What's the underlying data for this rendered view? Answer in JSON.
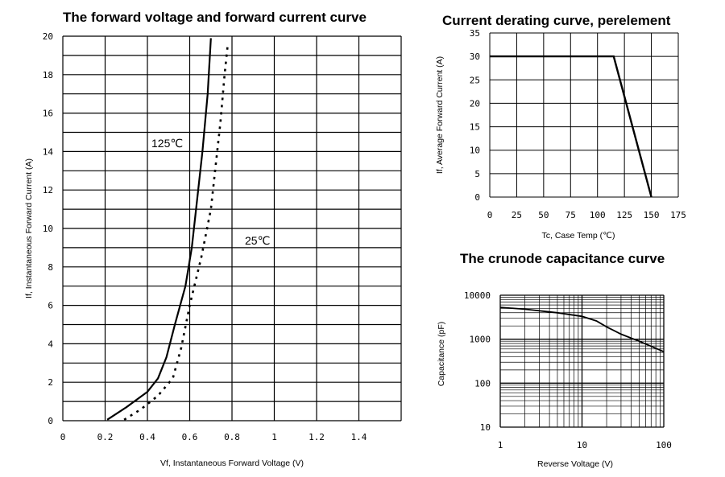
{
  "chart_data": [
    {
      "type": "line",
      "title": "The forward voltage and forward current curve",
      "xlabel": "Vf, Instantaneous Forward Voltage (V)",
      "ylabel": "If, Instantaneous Forward Current (A)",
      "xlim": [
        0,
        1.6
      ],
      "ylim": [
        0,
        20
      ],
      "xticks": [
        "0",
        "0.2",
        "0.4",
        "0.6",
        "0.8",
        "1",
        "1.2",
        "1.4"
      ],
      "yticks": [
        "0",
        "2",
        "4",
        "6",
        "8",
        "10",
        "12",
        "14",
        "16",
        "18",
        "20"
      ],
      "grid": true,
      "annotations": [
        "125℃",
        "25℃"
      ],
      "series": [
        {
          "name": "125℃",
          "style": "solid",
          "x": [
            0.21,
            0.3,
            0.4,
            0.45,
            0.49,
            0.53,
            0.58,
            0.61,
            0.635,
            0.66,
            0.685,
            0.7
          ],
          "y": [
            0.05,
            0.7,
            1.5,
            2.2,
            3.3,
            5.0,
            7.0,
            9.0,
            11.5,
            14.0,
            17.0,
            19.9
          ]
        },
        {
          "name": "25℃",
          "style": "dotted",
          "x": [
            0.29,
            0.37,
            0.45,
            0.52,
            0.56,
            0.6,
            0.655,
            0.7,
            0.72,
            0.745,
            0.765,
            0.78
          ],
          "y": [
            0.05,
            0.6,
            1.3,
            2.2,
            3.8,
            6.0,
            8.5,
            11.0,
            13.0,
            15.5,
            18.0,
            19.6
          ]
        }
      ]
    },
    {
      "type": "line",
      "title": "Current derating curve, perelement",
      "xlabel": "Tc, Case Temp (℃)",
      "ylabel": "If, Average Forward Current (A)",
      "xlim": [
        0,
        175
      ],
      "ylim": [
        0,
        35
      ],
      "xticks": [
        "0",
        "25",
        "50",
        "75",
        "100",
        "125",
        "150",
        "175"
      ],
      "yticks": [
        "0",
        "5",
        "10",
        "15",
        "20",
        "25",
        "30",
        "35"
      ],
      "grid": true,
      "series": [
        {
          "x": [
            0,
            115,
            150
          ],
          "y": [
            30,
            30,
            0
          ]
        }
      ]
    },
    {
      "type": "line",
      "title": "The crunode capacitance curve",
      "xlabel": "Reverse Voltage (V)",
      "ylabel": "Capacitance (pF)",
      "xscale": "log",
      "yscale": "log",
      "xlim": [
        1,
        100
      ],
      "ylim": [
        10,
        10000
      ],
      "xticks": [
        "1",
        "10",
        "100"
      ],
      "yticks": [
        "10",
        "100",
        "1000",
        "10000"
      ],
      "grid": true,
      "series": [
        {
          "x": [
            1,
            2,
            5,
            10,
            15,
            20,
            30,
            50,
            100
          ],
          "y": [
            5300,
            4800,
            4000,
            3300,
            2600,
            1900,
            1300,
            900,
            520
          ]
        }
      ]
    }
  ]
}
